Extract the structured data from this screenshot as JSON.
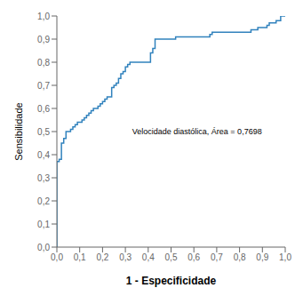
{
  "chart_data": {
    "type": "line",
    "x_label": "1 - Especificidade",
    "y_label": "Sensibilidade",
    "annotations": [
      {
        "text": "Velocidade diastólica, Área = 0,7698",
        "x": 0.33,
        "y": 0.5
      }
    ],
    "x": [
      0.0,
      0.0,
      0.0,
      0.01,
      0.01,
      0.02,
      0.02,
      0.03,
      0.03,
      0.04,
      0.04,
      0.05,
      0.06,
      0.07,
      0.08,
      0.09,
      0.1,
      0.11,
      0.12,
      0.13,
      0.14,
      0.15,
      0.16,
      0.17,
      0.18,
      0.19,
      0.2,
      0.21,
      0.22,
      0.23,
      0.24,
      0.25,
      0.26,
      0.27,
      0.28,
      0.29,
      0.3,
      0.31,
      0.32,
      0.33,
      0.35,
      0.38,
      0.4,
      0.41,
      0.42,
      0.43,
      0.5,
      0.51,
      0.52,
      0.55,
      0.6,
      0.63,
      0.65,
      0.67,
      0.68,
      0.7,
      0.75,
      0.8,
      0.85,
      0.88,
      0.9,
      0.91,
      0.92,
      0.93,
      0.94,
      0.95,
      0.96,
      0.97,
      0.98,
      1.0
    ],
    "values": [
      0.0,
      0.23,
      0.37,
      0.37,
      0.38,
      0.38,
      0.45,
      0.45,
      0.47,
      0.47,
      0.5,
      0.5,
      0.51,
      0.52,
      0.53,
      0.54,
      0.54,
      0.55,
      0.56,
      0.57,
      0.58,
      0.59,
      0.6,
      0.6,
      0.61,
      0.62,
      0.63,
      0.64,
      0.65,
      0.65,
      0.69,
      0.7,
      0.71,
      0.73,
      0.75,
      0.76,
      0.78,
      0.79,
      0.8,
      0.8,
      0.8,
      0.8,
      0.8,
      0.84,
      0.86,
      0.9,
      0.9,
      0.9,
      0.91,
      0.91,
      0.91,
      0.91,
      0.91,
      0.92,
      0.93,
      0.93,
      0.93,
      0.93,
      0.94,
      0.95,
      0.95,
      0.95,
      0.96,
      0.97,
      0.97,
      0.97,
      0.98,
      0.98,
      1.0,
      1.0
    ],
    "xlim": [
      0.0,
      1.0
    ],
    "ylim": [
      0.0,
      1.0
    ],
    "xticks": [
      {
        "value": 0.0,
        "label": "0,0"
      },
      {
        "value": 0.1,
        "label": "0,1"
      },
      {
        "value": 0.2,
        "label": "0,2"
      },
      {
        "value": 0.3,
        "label": "0,3"
      },
      {
        "value": 0.4,
        "label": "0,4"
      },
      {
        "value": 0.5,
        "label": "0,5"
      },
      {
        "value": 0.6,
        "label": "0,6"
      },
      {
        "value": 0.7,
        "label": "0,7"
      },
      {
        "value": 0.8,
        "label": "0,8"
      },
      {
        "value": 0.9,
        "label": "0,9"
      },
      {
        "value": 1.0,
        "label": "1,0"
      }
    ],
    "yticks": [
      {
        "value": 0.0,
        "label": "0,0"
      },
      {
        "value": 0.1,
        "label": "0,1"
      },
      {
        "value": 0.2,
        "label": "0,2"
      },
      {
        "value": 0.3,
        "label": "0,3"
      },
      {
        "value": 0.4,
        "label": "0,4"
      },
      {
        "value": 0.5,
        "label": "0,5"
      },
      {
        "value": 0.6,
        "label": "0,6"
      },
      {
        "value": 0.7,
        "label": "0,7"
      },
      {
        "value": 0.8,
        "label": "0,8"
      },
      {
        "value": 0.9,
        "label": "0,9"
      },
      {
        "value": 1.0,
        "label": "1,0"
      }
    ],
    "grid": false
  }
}
